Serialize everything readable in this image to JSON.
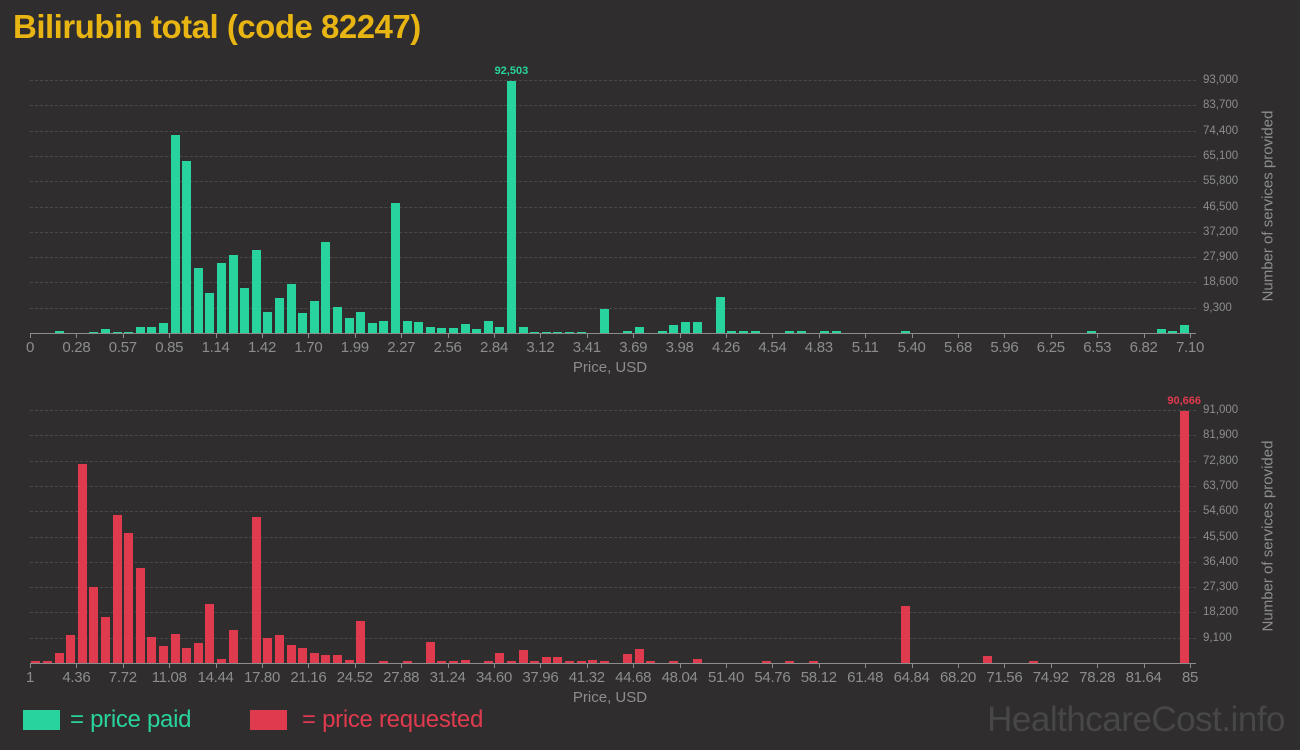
{
  "title": "Bilirubin total (code 82247)",
  "legend": {
    "paid_label": "= price paid",
    "requested_label": "= price requested"
  },
  "watermark": "HealthcareCost.info",
  "colors": {
    "background": "#2f2d2d",
    "paid": "#29d39d",
    "requested": "#e03a4e",
    "title": "#e8b512",
    "grid": "#4a4a4a",
    "axis": "#8c8c8c",
    "tick_text": "#8d8d8d",
    "watermark": "#474747"
  },
  "chart_data": [
    {
      "type": "bar",
      "series_name": "price paid",
      "color_key": "paid",
      "xlabel": "Price, USD",
      "ylabel": "Number of services provided",
      "grid": true,
      "legend_position": "bottom-left",
      "x_tick_labels": [
        "0",
        "0.28",
        "0.57",
        "0.85",
        "1.14",
        "1.42",
        "1.70",
        "1.99",
        "2.27",
        "2.56",
        "2.84",
        "3.12",
        "3.41",
        "3.69",
        "3.98",
        "4.26",
        "4.54",
        "4.83",
        "5.11",
        "5.40",
        "5.68",
        "5.96",
        "6.25",
        "6.53",
        "6.82",
        "7.10"
      ],
      "y_tick_labels": [
        "9,300",
        "18,600",
        "27,900",
        "37,200",
        "46,500",
        "55,800",
        "65,100",
        "74,400",
        "83,700",
        "93,000"
      ],
      "xlim": [
        0,
        7.1
      ],
      "ylim": [
        0,
        93000
      ],
      "bin_start": 0,
      "bin_width": 0.071,
      "max_value_label": "92,503",
      "values": [
        0,
        0,
        700,
        0,
        0,
        400,
        1500,
        400,
        400,
        2200,
        2200,
        3700,
        72800,
        63300,
        23900,
        14700,
        25700,
        28700,
        16500,
        30500,
        7700,
        12900,
        18000,
        7400,
        11800,
        33500,
        9600,
        5500,
        7700,
        3700,
        4500,
        47900,
        4400,
        4100,
        2300,
        1900,
        1800,
        3300,
        1500,
        4400,
        2300,
        92503,
        2300,
        500,
        500,
        500,
        500,
        500,
        0,
        8800,
        0,
        600,
        2200,
        0,
        600,
        2900,
        4100,
        4100,
        0,
        13300,
        800,
        800,
        800,
        0,
        0,
        900,
        900,
        0,
        800,
        800,
        0,
        0,
        0,
        0,
        0,
        800,
        0,
        0,
        0,
        0,
        0,
        0,
        0,
        0,
        0,
        0,
        0,
        0,
        0,
        0,
        0,
        700,
        0,
        0,
        0,
        0,
        0,
        1500,
        700,
        2900
      ]
    },
    {
      "type": "bar",
      "series_name": "price requested",
      "color_key": "requested",
      "xlabel": "Price, USD",
      "ylabel": "Number of services provided",
      "grid": true,
      "legend_position": "bottom-left",
      "x_tick_labels": [
        "1",
        "4.36",
        "7.72",
        "11.08",
        "14.44",
        "17.80",
        "21.16",
        "24.52",
        "27.88",
        "31.24",
        "34.60",
        "37.96",
        "41.32",
        "44.68",
        "48.04",
        "51.40",
        "54.76",
        "58.12",
        "61.48",
        "64.84",
        "68.20",
        "71.56",
        "74.92",
        "78.28",
        "81.64",
        "85"
      ],
      "y_tick_labels": [
        "9,100",
        "18,200",
        "27,300",
        "36,400",
        "45,500",
        "54,600",
        "63,700",
        "72,800",
        "81,900",
        "91,000"
      ],
      "xlim": [
        1,
        85
      ],
      "ylim": [
        0,
        91000
      ],
      "bin_start": 1,
      "bin_width": 0.84,
      "max_value_label": "90,666",
      "values": [
        700,
        700,
        3600,
        10000,
        71600,
        27400,
        16400,
        53200,
        46900,
        34100,
        9500,
        6100,
        10300,
        5300,
        7300,
        21100,
        1500,
        12000,
        0,
        52500,
        9000,
        10100,
        6500,
        5400,
        3600,
        2900,
        2900,
        900,
        15100,
        0,
        800,
        0,
        800,
        0,
        7600,
        800,
        800,
        900,
        0,
        800,
        3600,
        800,
        4700,
        800,
        2200,
        2200,
        800,
        800,
        900,
        800,
        0,
        3200,
        5200,
        800,
        0,
        800,
        0,
        1500,
        0,
        0,
        0,
        0,
        0,
        800,
        0,
        800,
        0,
        800,
        0,
        0,
        0,
        0,
        0,
        0,
        0,
        20500,
        0,
        0,
        0,
        0,
        0,
        0,
        2500,
        0,
        0,
        0,
        700,
        0,
        0,
        0,
        0,
        0,
        0,
        0,
        0,
        0,
        0,
        0,
        0,
        90666
      ]
    }
  ]
}
